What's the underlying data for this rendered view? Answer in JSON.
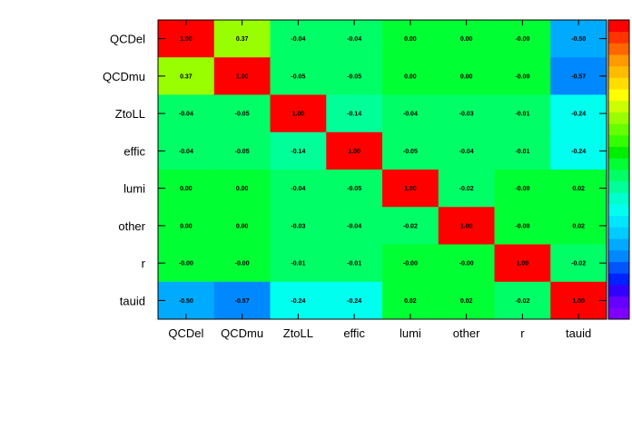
{
  "chart_data": {
    "type": "heatmap",
    "x_labels": [
      "QCDel",
      "QCDmu",
      "ZtoLL",
      "effic",
      "lumi",
      "other",
      "r",
      "tauid"
    ],
    "y_labels": [
      "QCDel",
      "QCDmu",
      "ZtoLL",
      "effic",
      "lumi",
      "other",
      "r",
      "tauid"
    ],
    "values": [
      [
        1.0,
        0.37,
        -0.04,
        -0.04,
        0.0,
        0.0,
        -0.0,
        -0.5
      ],
      [
        0.37,
        1.0,
        -0.05,
        -0.05,
        0.0,
        0.0,
        -0.0,
        -0.57
      ],
      [
        -0.04,
        -0.05,
        1.0,
        -0.14,
        -0.04,
        -0.03,
        -0.01,
        -0.24
      ],
      [
        -0.04,
        -0.05,
        -0.14,
        1.0,
        -0.05,
        -0.04,
        -0.01,
        -0.24
      ],
      [
        0.0,
        0.0,
        -0.04,
        -0.05,
        1.0,
        -0.02,
        -0.0,
        0.02
      ],
      [
        0.0,
        0.0,
        -0.03,
        -0.04,
        -0.02,
        1.0,
        -0.0,
        0.02
      ],
      [
        -0.0,
        -0.0,
        -0.01,
        -0.01,
        -0.0,
        -0.0,
        1.0,
        -0.02
      ],
      [
        -0.5,
        -0.57,
        -0.24,
        -0.24,
        0.02,
        0.02,
        -0.02,
        1.0
      ]
    ],
    "value_labels": [
      [
        "1.00",
        "0.37",
        "-0.04",
        "-0.04",
        "0.00",
        "0.00",
        "-0.00",
        "-0.50"
      ],
      [
        "0.37",
        "1.00",
        "-0.05",
        "-0.05",
        "0.00",
        "0.00",
        "-0.00",
        "-0.57"
      ],
      [
        "-0.04",
        "-0.05",
        "1.00",
        "-0.14",
        "-0.04",
        "-0.03",
        "-0.01",
        "-0.24"
      ],
      [
        "-0.04",
        "-0.05",
        "-0.14",
        "1.00",
        "-0.05",
        "-0.04",
        "-0.01",
        "-0.24"
      ],
      [
        "0.00",
        "0.00",
        "-0.04",
        "-0.05",
        "1.00",
        "-0.02",
        "-0.00",
        "0.02"
      ],
      [
        "0.00",
        "0.00",
        "-0.03",
        "-0.04",
        "-0.02",
        "1.00",
        "-0.00",
        "0.02"
      ],
      [
        "-0.00",
        "-0.00",
        "-0.01",
        "-0.01",
        "-0.00",
        "-0.00",
        "1.00",
        "-0.02"
      ],
      [
        "-0.50",
        "-0.57",
        "-0.24",
        "-0.24",
        "0.02",
        "0.02",
        "-0.02",
        "1.00"
      ]
    ],
    "zlim": [
      -1,
      1
    ],
    "palette": [
      "#7f00ff",
      "#6600ff",
      "#3300ff",
      "#0022ff",
      "#0055ff",
      "#0088ff",
      "#00aaff",
      "#00ccff",
      "#00e6ff",
      "#00ffee",
      "#00ffcc",
      "#00ff99",
      "#00ff66",
      "#00ff33",
      "#00ee00",
      "#33ff00",
      "#66ff00",
      "#99ff00",
      "#ccff00",
      "#ffff00",
      "#ffdd00",
      "#ffbb00",
      "#ff9900",
      "#ff6600",
      "#ff3300",
      "#ff0000"
    ],
    "colorbar": true,
    "grid": false
  }
}
